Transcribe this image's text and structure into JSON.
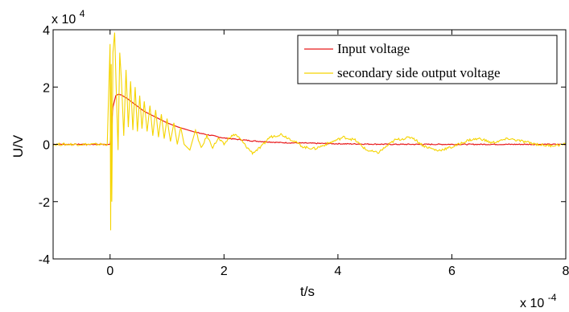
{
  "chart_data": {
    "type": "line",
    "xlabel": "t/s",
    "ylabel": "U/V",
    "x_multiplier": "x 10",
    "x_multiplier_exp": "-4",
    "y_multiplier": "x 10",
    "y_multiplier_exp": "4",
    "xlim": [
      -1,
      8
    ],
    "ylim": [
      -4,
      4
    ],
    "xticks": [
      0,
      2,
      4,
      6,
      8
    ],
    "yticks": [
      -4,
      -2,
      0,
      2,
      4
    ],
    "grid": false,
    "legend_position": "top-right",
    "series": [
      {
        "name": "Input voltage",
        "color": "#e8191b",
        "x": [
          -1.0,
          -0.5,
          -0.05,
          0.0,
          0.05,
          0.1,
          0.15,
          0.2,
          0.3,
          0.4,
          0.5,
          0.6,
          0.8,
          1.0,
          1.2,
          1.5,
          2.0,
          2.5,
          3.0,
          4.0,
          5.0,
          6.0,
          7.0,
          8.0
        ],
        "y": [
          0.0,
          0.0,
          0.0,
          0.0,
          1.3,
          1.7,
          1.75,
          1.72,
          1.6,
          1.45,
          1.3,
          1.15,
          0.95,
          0.75,
          0.6,
          0.42,
          0.22,
          0.12,
          0.06,
          0.02,
          0.0,
          0.0,
          0.0,
          0.0
        ]
      },
      {
        "name": "secondary side output voltage",
        "color": "#f5d400",
        "x": [
          -1.0,
          -0.5,
          -0.05,
          0.0,
          0.01,
          0.02,
          0.03,
          0.05,
          0.08,
          0.11,
          0.14,
          0.17,
          0.2,
          0.24,
          0.28,
          0.32,
          0.36,
          0.4,
          0.44,
          0.48,
          0.52,
          0.56,
          0.6,
          0.65,
          0.7,
          0.75,
          0.8,
          0.85,
          0.9,
          0.95,
          1.0,
          1.06,
          1.12,
          1.18,
          1.24,
          1.3,
          1.4,
          1.5,
          1.6,
          1.7,
          1.8,
          1.9,
          2.0,
          2.1,
          2.2,
          2.3,
          2.4,
          2.5,
          2.65,
          2.8,
          3.0,
          3.2,
          3.4,
          3.6,
          3.85,
          4.1,
          4.3,
          4.5,
          4.7,
          5.0,
          5.3,
          5.5,
          5.75,
          6.0,
          6.3,
          6.5,
          6.7,
          7.0,
          7.3,
          7.5,
          7.7,
          8.0
        ],
        "y": [
          0.0,
          0.0,
          0.0,
          3.5,
          -3.0,
          2.8,
          -2.0,
          3.2,
          3.9,
          1.8,
          -0.2,
          3.2,
          2.2,
          0.3,
          2.6,
          0.6,
          2.2,
          0.5,
          2.0,
          0.45,
          1.7,
          0.55,
          1.5,
          0.45,
          1.35,
          0.3,
          1.2,
          0.25,
          1.05,
          0.2,
          0.9,
          0.1,
          0.75,
          0.0,
          0.6,
          0.0,
          -0.2,
          0.5,
          -0.15,
          0.3,
          -0.1,
          0.2,
          0.0,
          0.25,
          0.35,
          0.15,
          -0.1,
          -0.3,
          -0.1,
          0.25,
          0.35,
          0.15,
          -0.1,
          -0.15,
          0.05,
          0.25,
          0.15,
          -0.2,
          -0.3,
          0.15,
          0.25,
          -0.05,
          -0.22,
          -0.1,
          0.15,
          0.2,
          0.05,
          0.2,
          0.08,
          0.0,
          -0.05,
          0.0
        ]
      }
    ]
  }
}
